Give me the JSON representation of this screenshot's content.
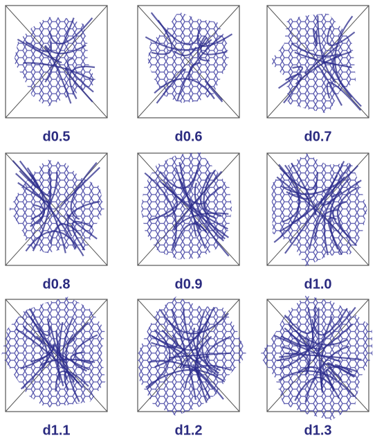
{
  "panels": [
    {
      "label": "d0.5"
    },
    {
      "label": "d0.6"
    },
    {
      "label": "d0.7"
    },
    {
      "label": "d0.8"
    },
    {
      "label": "d0.9"
    },
    {
      "label": "d1.0"
    },
    {
      "label": "d1.1"
    },
    {
      "label": "d1.2"
    },
    {
      "label": "d1.3"
    }
  ]
}
